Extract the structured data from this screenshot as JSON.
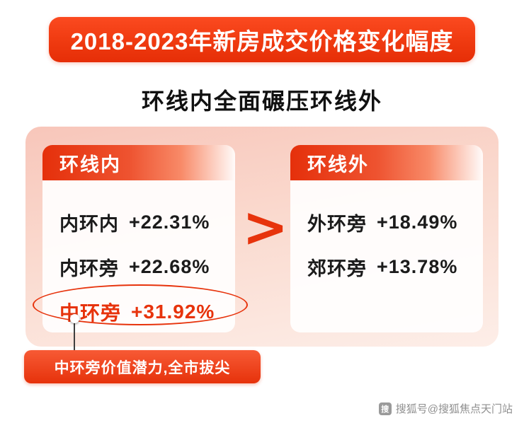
{
  "banner": {
    "title": "2018-2023年新房成交价格变化幅度"
  },
  "headline": "环线内全面碾压环线外",
  "comparison": {
    "operator": ">",
    "left": {
      "header": "环线内",
      "rows": [
        {
          "label": "内环内",
          "value": "+22.31%"
        },
        {
          "label": "内环旁",
          "value": "+22.68%"
        },
        {
          "label": "中环旁",
          "value": "+31.92%"
        }
      ]
    },
    "right": {
      "header": "环线外",
      "rows": [
        {
          "label": "外环旁",
          "value": "+18.49%"
        },
        {
          "label": "郊环旁",
          "value": "+13.78%"
        }
      ]
    }
  },
  "callout": {
    "text": "中环旁价值潜力,全市拔尖"
  },
  "watermark": {
    "text": "搜狐号@搜狐焦点天门站",
    "icon": "搜"
  },
  "colors": {
    "accent": "#e7330c",
    "panel_pink": "#f8c6ba",
    "banner_red": "#ef3a10"
  },
  "chart_data": {
    "type": "table",
    "title": "2018-2023年新房成交价格变化幅度",
    "subtitle": "环线内全面碾压环线外",
    "unit": "% price change",
    "series": [
      {
        "name": "环线内",
        "categories": [
          "内环内",
          "内环旁",
          "中环旁"
        ],
        "values": [
          22.31,
          22.68,
          31.92
        ]
      },
      {
        "name": "环线外",
        "categories": [
          "外环旁",
          "郊环旁"
        ],
        "values": [
          18.49,
          13.78
        ]
      }
    ],
    "comparison": "环线内 > 环线外",
    "highlight": {
      "category": "中环旁",
      "value": 31.92,
      "annotation": "中环旁价值潜力,全市拔尖"
    }
  }
}
